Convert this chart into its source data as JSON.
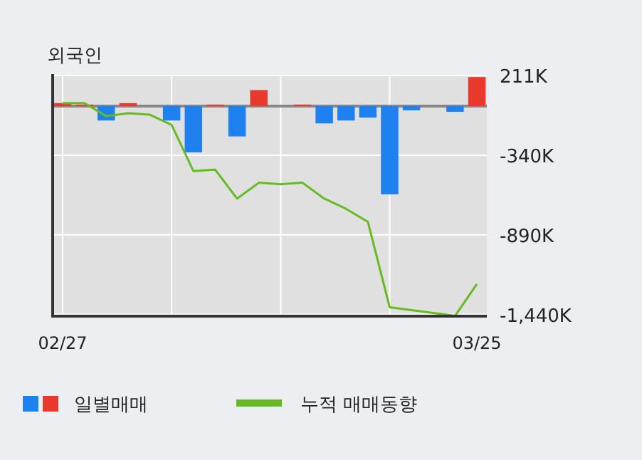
{
  "chart_data": {
    "type": "bar",
    "title": "외국인",
    "categories": [
      "02/27",
      null,
      null,
      null,
      null,
      null,
      null,
      null,
      null,
      null,
      null,
      null,
      null,
      null,
      null,
      null,
      null,
      null,
      null,
      "03/25"
    ],
    "series": [
      {
        "name": "일별매매",
        "colors": [
          "#e8392c",
          "#e8392c",
          "#1f80f0",
          "#e8392c",
          "#e8392c",
          "#1f80f0",
          "#1f80f0",
          "#e8392c",
          "#1f80f0",
          "#e8392c",
          "#e8392c",
          "#e8392c",
          "#1f80f0",
          "#1f80f0",
          "#1f80f0",
          "#1f80f0",
          "#1f80f0",
          "#1f80f0",
          "#1f80f0",
          "#e8392c"
        ],
        "values": [
          20,
          10,
          -100,
          20,
          0,
          -100,
          -320,
          10,
          -210,
          110,
          0,
          10,
          -120,
          -100,
          -80,
          -610,
          -30,
          0,
          -40,
          200
        ]
      },
      {
        "name": "누적 매매동향",
        "type": "line",
        "color": "#66bb22",
        "values": [
          20,
          20,
          -70,
          -50,
          -60,
          -130,
          -450,
          -440,
          -640,
          -530,
          -540,
          -530,
          -640,
          -710,
          -800,
          -1390,
          -1410,
          -1430,
          -1450,
          -1230
        ]
      }
    ],
    "ylim": [
      -1452,
      211
    ],
    "yticks": [
      {
        "value": 211,
        "label": "211K"
      },
      {
        "value": -340,
        "label": "-340K"
      },
      {
        "value": -890,
        "label": "-890K"
      },
      {
        "value": -1440,
        "label": "-1,440K"
      }
    ],
    "grid": true,
    "legend": "bottom left"
  }
}
